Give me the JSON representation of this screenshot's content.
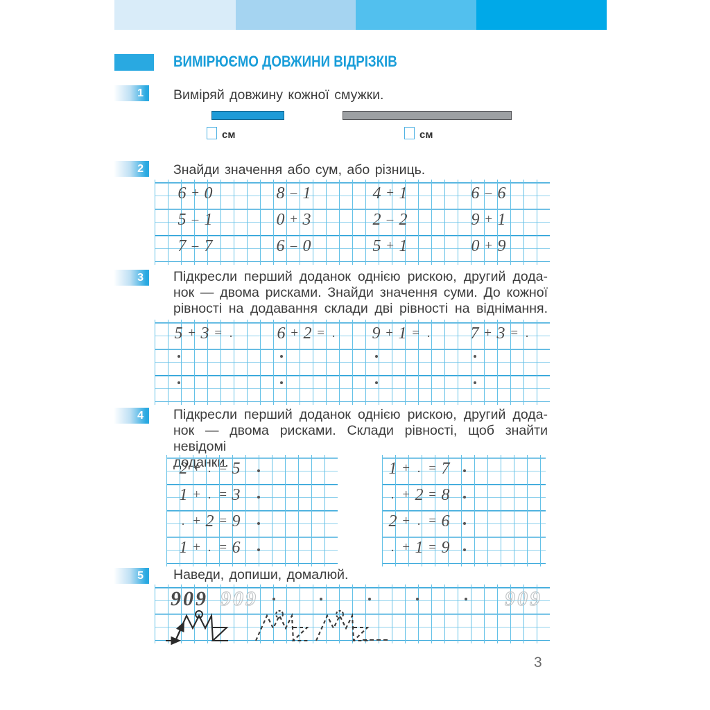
{
  "page_number": "3",
  "header": {
    "bars": [
      {
        "name": "bar-1",
        "color": "#d9ecf9"
      },
      {
        "name": "bar-2",
        "color": "#a5d4f1"
      },
      {
        "name": "bar-3",
        "color": "#52c0ee"
      },
      {
        "name": "bar-4",
        "color": "#00a9e8"
      }
    ]
  },
  "title": {
    "text": "ВИМІРЮЄМО ДОВЖИНИ ВІДРІЗКІВ",
    "accent_color": "#189dd9",
    "badge_color": "#29a9e1"
  },
  "tasks": [
    {
      "number": "1",
      "lines": [
        "Виміряй довжину кожної смужки."
      ]
    },
    {
      "number": "2",
      "lines": [
        "Знайди значення або сум, або різниць."
      ]
    },
    {
      "number": "3",
      "lines": [
        "Підкресли перший доданок однією рискою, другий дода-",
        "нок — двома рисками. Знайди значення суми. До кожної",
        "рівності на додавання склади дві рівності на віднімання."
      ]
    },
    {
      "number": "4",
      "lines": [
        "Підкресли перший доданок однією рискою, другий дода-",
        "нок — двома рисками. Склади рівності, щоб знайти невідомі",
        "доданки."
      ]
    },
    {
      "number": "5",
      "lines": [
        "Наведи, допиши, домалюй."
      ]
    }
  ],
  "task1": {
    "unit_label": "см",
    "blue_strip_color": "#1e9bd7",
    "gray_strip_color": "#9da0a3"
  },
  "task2": {
    "rows": [
      [
        [
          "6",
          "+",
          "0"
        ],
        [
          "8",
          "–",
          "1"
        ],
        [
          "4",
          "+",
          "1"
        ],
        [
          "6",
          "–",
          "6"
        ]
      ],
      [
        [
          "5",
          "–",
          "1"
        ],
        [
          "0",
          "+",
          "3"
        ],
        [
          "2",
          "–",
          "2"
        ],
        [
          "9",
          "+",
          "1"
        ]
      ],
      [
        [
          "7",
          "–",
          "7"
        ],
        [
          "6",
          "–",
          "0"
        ],
        [
          "5",
          "+",
          "1"
        ],
        [
          "0",
          "+",
          "9"
        ]
      ]
    ]
  },
  "task3": {
    "row": [
      [
        "5",
        "+",
        "3",
        "="
      ],
      [
        "6",
        "+",
        "2",
        "="
      ],
      [
        "9",
        "+",
        "1",
        "="
      ],
      [
        "7",
        "+",
        "3",
        "="
      ]
    ],
    "answer_dot": ".",
    "dot_rows_below": 2
  },
  "task4": {
    "left": [
      [
        "2",
        "+",
        ".",
        "=",
        "5"
      ],
      [
        "1",
        "+",
        ".",
        "=",
        "3"
      ],
      [
        ".",
        "+",
        "2",
        "=",
        "9"
      ],
      [
        "1",
        "+",
        ".",
        "=",
        "6"
      ]
    ],
    "right": [
      [
        "1",
        "+",
        ".",
        "=",
        "7"
      ],
      [
        ".",
        "+",
        "2",
        "=",
        "8"
      ],
      [
        "2",
        "+",
        ".",
        "=",
        "6"
      ],
      [
        ".",
        "+",
        "1",
        "=",
        "9"
      ]
    ],
    "answer_dot": "."
  },
  "task5": {
    "solid_digits": "909",
    "traced_digits": "909",
    "right_digits": "909",
    "dot_count": 5
  }
}
